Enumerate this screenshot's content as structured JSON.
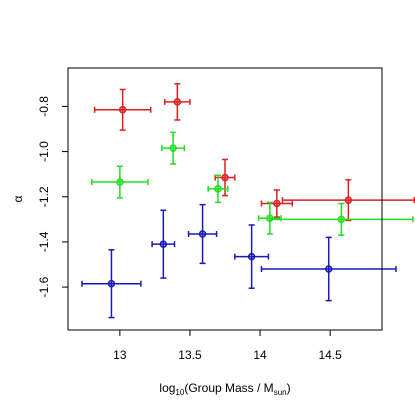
{
  "chart_data": {
    "type": "scatter",
    "title": "",
    "xlabel": {
      "prefix": "log",
      "prefix_sub": "10",
      "main": "(Group Mass / M",
      "main_sub": "sun",
      "suffix": ")"
    },
    "ylabel": "α",
    "xlim": [
      12.63,
      14.87
    ],
    "ylim": [
      -1.79,
      -0.63
    ],
    "x_ticks": [
      13,
      13.5,
      14,
      14.5
    ],
    "x_tick_labels": [
      "13",
      "13.5",
      "14",
      "14.5"
    ],
    "y_ticks": [
      -0.8,
      -1.0,
      -1.2,
      -1.4,
      -1.6
    ],
    "y_tick_labels": [
      "-0.8",
      "-1.0",
      "-1.2",
      "-1.4",
      "-1.6"
    ],
    "grid": false,
    "error_bars": true,
    "series": [
      {
        "color": "#dd1f1f",
        "points": [
          {
            "x": 13.02,
            "y": -0.815,
            "xerr": 0.2,
            "yerr": 0.09
          },
          {
            "x": 13.41,
            "y": -0.78,
            "xerr": 0.09,
            "yerr": 0.08
          },
          {
            "x": 13.75,
            "y": -1.115,
            "xerr": 0.07,
            "yerr": 0.08
          },
          {
            "x": 14.12,
            "y": -1.23,
            "xerr": 0.11,
            "yerr": 0.06
          },
          {
            "x": 14.63,
            "y": -1.215,
            "xerr": 0.47,
            "yerr": 0.09
          }
        ]
      },
      {
        "color": "#22dd22",
        "points": [
          {
            "x": 13.0,
            "y": -1.135,
            "xerr": 0.2,
            "yerr": 0.07
          },
          {
            "x": 13.38,
            "y": -0.985,
            "xerr": 0.08,
            "yerr": 0.07
          },
          {
            "x": 13.7,
            "y": -1.165,
            "xerr": 0.07,
            "yerr": 0.06
          },
          {
            "x": 14.07,
            "y": -1.295,
            "xerr": 0.08,
            "yerr": 0.07
          },
          {
            "x": 14.58,
            "y": -1.3,
            "xerr": 0.51,
            "yerr": 0.07
          }
        ]
      },
      {
        "color": "#1a1ab8",
        "points": [
          {
            "x": 12.94,
            "y": -1.585,
            "xerr": 0.21,
            "yerr": 0.15
          },
          {
            "x": 13.31,
            "y": -1.41,
            "xerr": 0.08,
            "yerr": 0.15
          },
          {
            "x": 13.59,
            "y": -1.365,
            "xerr": 0.1,
            "yerr": 0.13
          },
          {
            "x": 13.94,
            "y": -1.465,
            "xerr": 0.12,
            "yerr": 0.14
          },
          {
            "x": 14.49,
            "y": -1.52,
            "xerr": 0.48,
            "yerr": 0.14
          }
        ]
      }
    ]
  }
}
